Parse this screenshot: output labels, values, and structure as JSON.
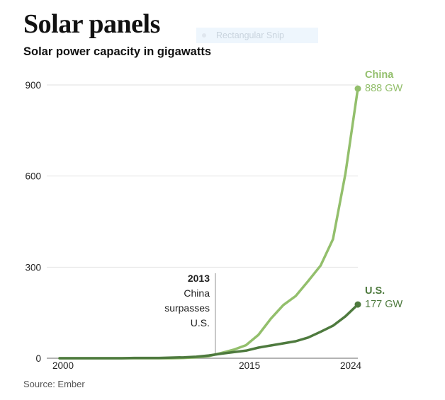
{
  "header": {
    "title": "Solar panels",
    "subtitle": "Solar power capacity in gigawatts"
  },
  "overlay": {
    "snip_label": "Rectangular Snip"
  },
  "footer": {
    "source": "Source: Ember"
  },
  "chart_data": {
    "type": "line",
    "title": "Solar panels",
    "subtitle": "Solar power capacity in gigawatts",
    "xlabel": "",
    "ylabel": "",
    "xlim": [
      2000,
      2024
    ],
    "ylim": [
      0,
      900
    ],
    "x_ticks": [
      2000,
      2015,
      2024
    ],
    "y_ticks": [
      0,
      300,
      600,
      900
    ],
    "grid": true,
    "x": [
      2000,
      2001,
      2002,
      2003,
      2004,
      2005,
      2006,
      2007,
      2008,
      2009,
      2010,
      2011,
      2012,
      2013,
      2014,
      2015,
      2016,
      2017,
      2018,
      2019,
      2020,
      2021,
      2022,
      2023,
      2024
    ],
    "series": [
      {
        "name": "China",
        "color": "#93bf6c",
        "values": [
          0,
          0,
          0,
          0,
          0,
          0,
          0,
          0,
          0,
          0,
          1,
          3,
          7,
          17,
          28,
          43,
          77,
          130,
          175,
          205,
          254,
          305,
          392,
          608,
          888
        ],
        "end_label": "China",
        "end_value_label": "888 GW"
      },
      {
        "name": "U.S.",
        "color": "#4e7a3e",
        "values": [
          0,
          0,
          0,
          0,
          0,
          0,
          1,
          1,
          1,
          2,
          3,
          5,
          9,
          15,
          20,
          25,
          35,
          42,
          49,
          56,
          68,
          87,
          107,
          138,
          177
        ],
        "end_label": "U.S.",
        "end_value_label": "177 GW"
      }
    ],
    "annotations": [
      {
        "year_label": "2013",
        "lines": [
          "China",
          "surpasses",
          "U.S."
        ]
      }
    ],
    "legend": "inline-end-labels"
  }
}
